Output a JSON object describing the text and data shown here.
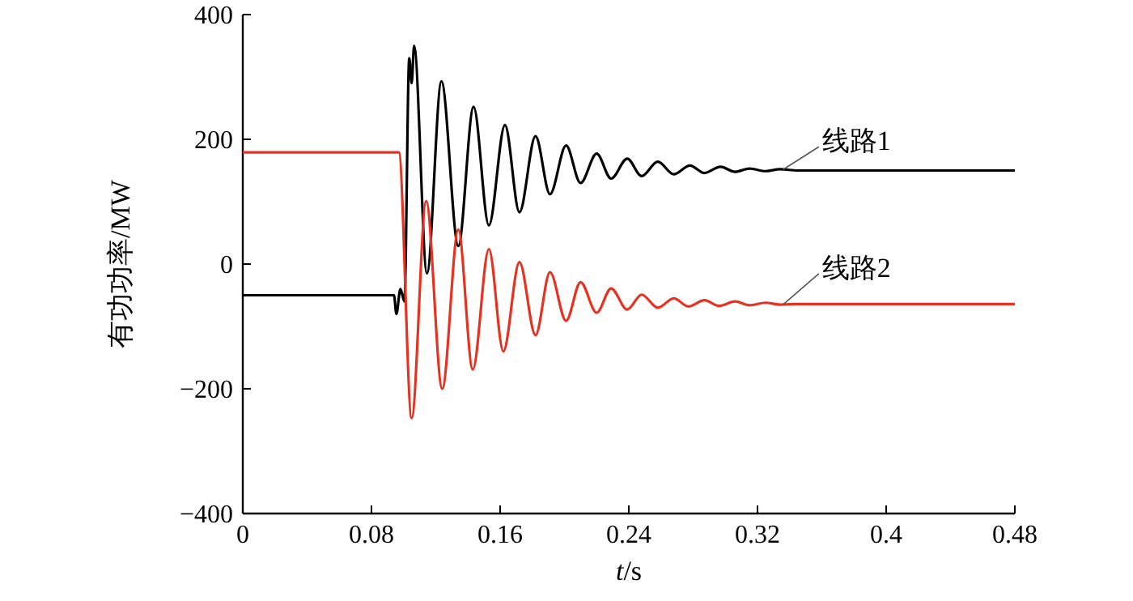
{
  "chart_data": {
    "type": "line",
    "xlabel": "t/s",
    "ylabel": "有功功率/MW",
    "xlim": [
      0,
      0.48
    ],
    "xticks": [
      0,
      0.08,
      0.16,
      0.24,
      0.32,
      0.4,
      0.48
    ],
    "ylim": [
      -400,
      400
    ],
    "yticks": [
      {
        "value": -400,
        "label": "−400"
      },
      {
        "value": -200,
        "label": "−200"
      },
      0,
      200,
      400
    ],
    "grid": false,
    "marker": "none",
    "line_style": "solid",
    "series": [
      {
        "name": "线路1",
        "color": "#000000",
        "x": [
          0,
          0.094,
          0.0955,
          0.098,
          0.1005,
          0.1035,
          0.105,
          0.1065,
          0.1145,
          0.1235,
          0.134,
          0.1435,
          0.153,
          0.163,
          0.172,
          0.182,
          0.191,
          0.201,
          0.21,
          0.22,
          0.229,
          0.239,
          0.248,
          0.258,
          0.268,
          0.278,
          0.287,
          0.297,
          0.306,
          0.315,
          0.325,
          0.334,
          0.345,
          0.48
        ],
        "values": [
          -50,
          -50,
          -80,
          -40,
          -60,
          330,
          290,
          350,
          -15,
          293,
          29,
          252,
          62,
          223,
          83,
          205,
          112,
          190,
          130,
          177,
          137,
          169,
          141,
          164,
          144,
          158,
          146,
          156,
          148,
          153,
          149,
          152,
          150,
          150
        ]
      },
      {
        "name": "线路2",
        "color": "#e8311f",
        "x": [
          0,
          0.097,
          0.105,
          0.114,
          0.124,
          0.134,
          0.143,
          0.153,
          0.162,
          0.172,
          0.182,
          0.191,
          0.201,
          0.21,
          0.22,
          0.229,
          0.239,
          0.248,
          0.258,
          0.268,
          0.277,
          0.287,
          0.296,
          0.306,
          0.315,
          0.325,
          0.334,
          0.345,
          0.48
        ],
        "values": [
          179,
          179,
          -247,
          101,
          -200,
          55,
          -169,
          24,
          -140,
          3,
          -114,
          -13,
          -91,
          -29,
          -78,
          -39,
          -73,
          -49,
          -70,
          -55,
          -68,
          -58,
          -67,
          -60,
          -66,
          -62,
          -65,
          -64,
          -64
        ]
      }
    ]
  }
}
